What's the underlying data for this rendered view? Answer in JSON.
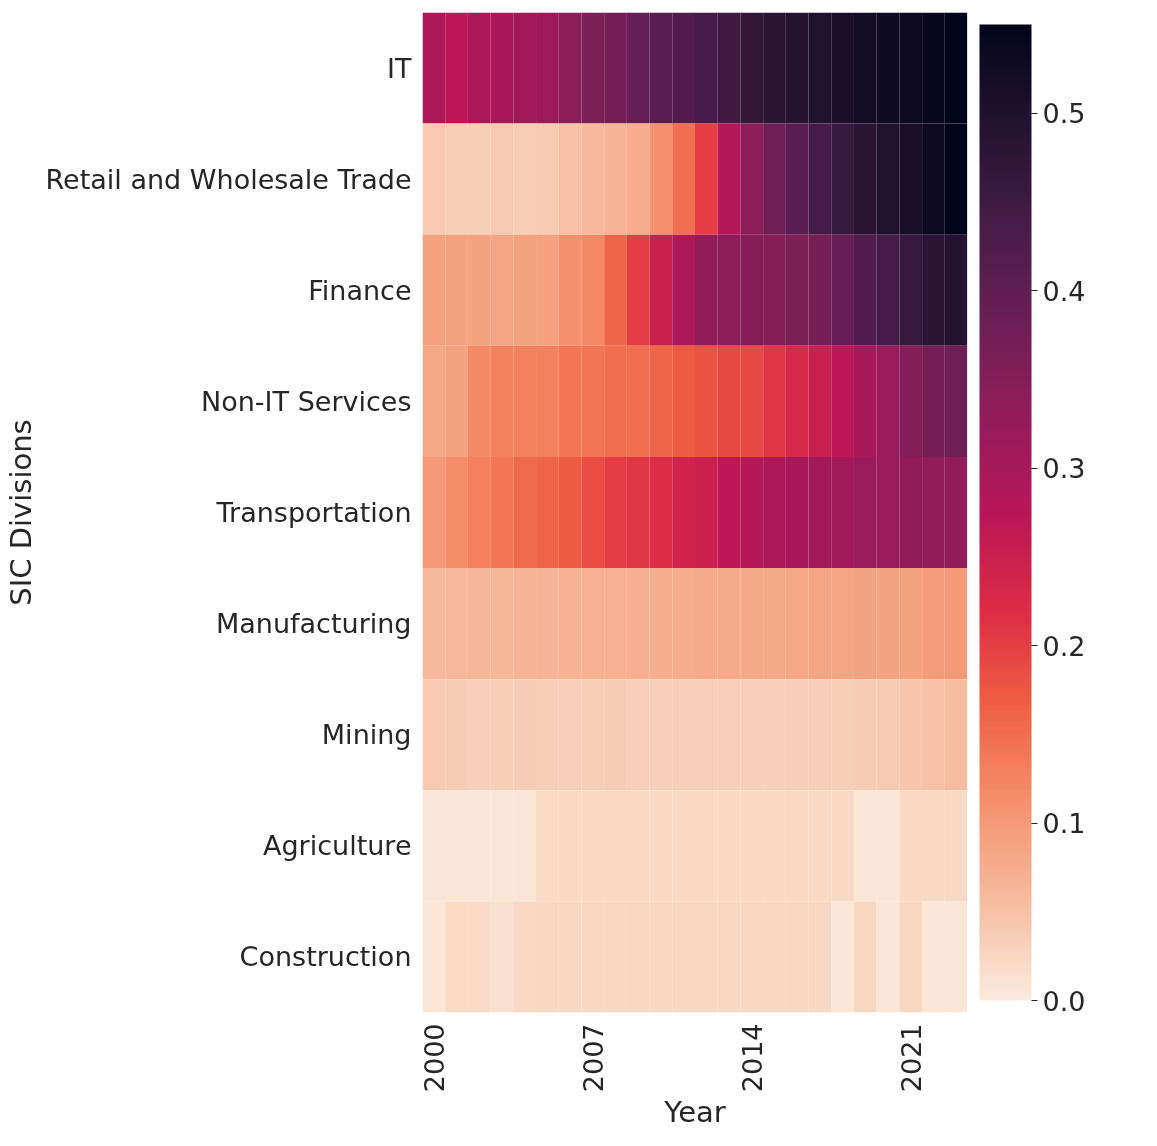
{
  "chart_data": {
    "type": "heatmap",
    "xlabel": "Year",
    "ylabel": "SIC Divisions",
    "categories": [
      "2000",
      null,
      null,
      null,
      null,
      null,
      null,
      "2007",
      null,
      null,
      null,
      null,
      null,
      null,
      "2014",
      null,
      null,
      null,
      null,
      null,
      null,
      "2021",
      null,
      null
    ],
    "y_categories": [
      "IT",
      "Retail and Wholesale Trade",
      "Finance",
      "Non-IT Services",
      "Transportation",
      "Manufacturing",
      "Mining",
      "Agriculture",
      "Construction"
    ],
    "cells": [
      [
        0.29,
        0.27,
        0.29,
        0.3,
        0.31,
        0.315,
        0.34,
        0.36,
        0.37,
        0.39,
        0.41,
        0.42,
        0.44,
        0.45,
        0.47,
        0.48,
        0.49,
        0.5,
        0.51,
        0.52,
        0.525,
        0.53,
        0.54,
        0.55
      ],
      [
        0.04,
        0.035,
        0.035,
        0.04,
        0.035,
        0.04,
        0.05,
        0.06,
        0.065,
        0.075,
        0.11,
        0.15,
        0.2,
        0.28,
        0.34,
        0.38,
        0.41,
        0.44,
        0.46,
        0.48,
        0.5,
        0.51,
        0.53,
        0.55
      ],
      [
        0.09,
        0.09,
        0.09,
        0.085,
        0.09,
        0.09,
        0.11,
        0.12,
        0.16,
        0.2,
        0.25,
        0.29,
        0.33,
        0.34,
        0.35,
        0.35,
        0.36,
        0.37,
        0.39,
        0.42,
        0.44,
        0.46,
        0.48,
        0.49
      ],
      [
        0.08,
        0.09,
        0.12,
        0.13,
        0.13,
        0.13,
        0.14,
        0.14,
        0.15,
        0.15,
        0.16,
        0.17,
        0.18,
        0.19,
        0.19,
        0.21,
        0.23,
        0.25,
        0.27,
        0.3,
        0.32,
        0.35,
        0.37,
        0.38
      ],
      [
        0.1,
        0.115,
        0.13,
        0.14,
        0.155,
        0.16,
        0.17,
        0.185,
        0.2,
        0.21,
        0.22,
        0.24,
        0.25,
        0.27,
        0.28,
        0.29,
        0.3,
        0.31,
        0.31,
        0.32,
        0.32,
        0.33,
        0.33,
        0.33
      ],
      [
        0.06,
        0.062,
        0.064,
        0.064,
        0.066,
        0.066,
        0.068,
        0.07,
        0.07,
        0.072,
        0.074,
        0.076,
        0.078,
        0.078,
        0.08,
        0.08,
        0.082,
        0.084,
        0.084,
        0.086,
        0.088,
        0.09,
        0.095,
        0.1
      ],
      [
        0.04,
        0.037,
        0.034,
        0.035,
        0.038,
        0.036,
        0.034,
        0.036,
        0.037,
        0.034,
        0.034,
        0.034,
        0.033,
        0.033,
        0.033,
        0.033,
        0.035,
        0.035,
        0.036,
        0.037,
        0.04,
        0.045,
        0.05,
        0.054
      ],
      [
        0.007,
        0.007,
        0.007,
        0.007,
        0.007,
        0.02,
        0.022,
        0.022,
        0.022,
        0.022,
        0.022,
        0.022,
        0.022,
        0.022,
        0.022,
        0.022,
        0.022,
        0.022,
        0.022,
        0.007,
        0.007,
        0.022,
        0.022,
        0.022
      ],
      [
        0.007,
        0.02,
        0.02,
        0.015,
        0.022,
        0.025,
        0.025,
        0.025,
        0.025,
        0.025,
        0.025,
        0.025,
        0.025,
        0.025,
        0.025,
        0.025,
        0.025,
        0.025,
        0.007,
        0.025,
        0.007,
        0.025,
        0.007,
        0.007
      ]
    ],
    "clim": [
      0,
      0.55
    ],
    "cticks": [
      {
        "value": 0,
        "label": "0.0"
      },
      {
        "value": 0.1,
        "label": "0.1"
      },
      {
        "value": 0.2,
        "label": "0.2"
      },
      {
        "value": 0.3,
        "label": "0.3"
      },
      {
        "value": 0.4,
        "label": "0.4"
      },
      {
        "value": 0.5,
        "label": "0.5"
      }
    ]
  }
}
